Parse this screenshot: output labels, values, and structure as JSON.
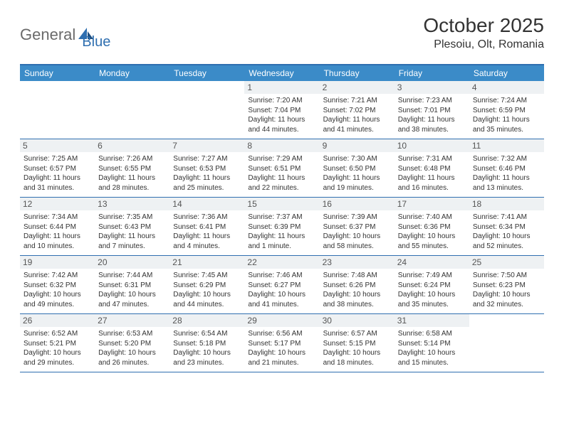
{
  "logo": {
    "part1": "General",
    "part2": "Blue"
  },
  "header": {
    "title": "October 2025",
    "location": "Plesoiu, Olt, Romania"
  },
  "weekday_bg": "#3b8bc8",
  "border_color": "#2f6fb0",
  "daynum_bg": "#eef1f3",
  "weekdays": [
    "Sunday",
    "Monday",
    "Tuesday",
    "Wednesday",
    "Thursday",
    "Friday",
    "Saturday"
  ],
  "weeks": [
    [
      null,
      null,
      null,
      {
        "n": "1",
        "sunrise": "7:20 AM",
        "sunset": "7:04 PM",
        "day_h": "11",
        "day_m": "44"
      },
      {
        "n": "2",
        "sunrise": "7:21 AM",
        "sunset": "7:02 PM",
        "day_h": "11",
        "day_m": "41"
      },
      {
        "n": "3",
        "sunrise": "7:23 AM",
        "sunset": "7:01 PM",
        "day_h": "11",
        "day_m": "38"
      },
      {
        "n": "4",
        "sunrise": "7:24 AM",
        "sunset": "6:59 PM",
        "day_h": "11",
        "day_m": "35"
      }
    ],
    [
      {
        "n": "5",
        "sunrise": "7:25 AM",
        "sunset": "6:57 PM",
        "day_h": "11",
        "day_m": "31"
      },
      {
        "n": "6",
        "sunrise": "7:26 AM",
        "sunset": "6:55 PM",
        "day_h": "11",
        "day_m": "28"
      },
      {
        "n": "7",
        "sunrise": "7:27 AM",
        "sunset": "6:53 PM",
        "day_h": "11",
        "day_m": "25"
      },
      {
        "n": "8",
        "sunrise": "7:29 AM",
        "sunset": "6:51 PM",
        "day_h": "11",
        "day_m": "22"
      },
      {
        "n": "9",
        "sunrise": "7:30 AM",
        "sunset": "6:50 PM",
        "day_h": "11",
        "day_m": "19"
      },
      {
        "n": "10",
        "sunrise": "7:31 AM",
        "sunset": "6:48 PM",
        "day_h": "11",
        "day_m": "16"
      },
      {
        "n": "11",
        "sunrise": "7:32 AM",
        "sunset": "6:46 PM",
        "day_h": "11",
        "day_m": "13"
      }
    ],
    [
      {
        "n": "12",
        "sunrise": "7:34 AM",
        "sunset": "6:44 PM",
        "day_h": "11",
        "day_m": "10"
      },
      {
        "n": "13",
        "sunrise": "7:35 AM",
        "sunset": "6:43 PM",
        "day_h": "11",
        "day_m": "7"
      },
      {
        "n": "14",
        "sunrise": "7:36 AM",
        "sunset": "6:41 PM",
        "day_h": "11",
        "day_m": "4"
      },
      {
        "n": "15",
        "sunrise": "7:37 AM",
        "sunset": "6:39 PM",
        "day_h": "11",
        "day_m": "1",
        "singular": true
      },
      {
        "n": "16",
        "sunrise": "7:39 AM",
        "sunset": "6:37 PM",
        "day_h": "10",
        "day_m": "58"
      },
      {
        "n": "17",
        "sunrise": "7:40 AM",
        "sunset": "6:36 PM",
        "day_h": "10",
        "day_m": "55"
      },
      {
        "n": "18",
        "sunrise": "7:41 AM",
        "sunset": "6:34 PM",
        "day_h": "10",
        "day_m": "52"
      }
    ],
    [
      {
        "n": "19",
        "sunrise": "7:42 AM",
        "sunset": "6:32 PM",
        "day_h": "10",
        "day_m": "49"
      },
      {
        "n": "20",
        "sunrise": "7:44 AM",
        "sunset": "6:31 PM",
        "day_h": "10",
        "day_m": "47"
      },
      {
        "n": "21",
        "sunrise": "7:45 AM",
        "sunset": "6:29 PM",
        "day_h": "10",
        "day_m": "44"
      },
      {
        "n": "22",
        "sunrise": "7:46 AM",
        "sunset": "6:27 PM",
        "day_h": "10",
        "day_m": "41"
      },
      {
        "n": "23",
        "sunrise": "7:48 AM",
        "sunset": "6:26 PM",
        "day_h": "10",
        "day_m": "38"
      },
      {
        "n": "24",
        "sunrise": "7:49 AM",
        "sunset": "6:24 PM",
        "day_h": "10",
        "day_m": "35"
      },
      {
        "n": "25",
        "sunrise": "7:50 AM",
        "sunset": "6:23 PM",
        "day_h": "10",
        "day_m": "32"
      }
    ],
    [
      {
        "n": "26",
        "sunrise": "6:52 AM",
        "sunset": "5:21 PM",
        "day_h": "10",
        "day_m": "29"
      },
      {
        "n": "27",
        "sunrise": "6:53 AM",
        "sunset": "5:20 PM",
        "day_h": "10",
        "day_m": "26"
      },
      {
        "n": "28",
        "sunrise": "6:54 AM",
        "sunset": "5:18 PM",
        "day_h": "10",
        "day_m": "23"
      },
      {
        "n": "29",
        "sunrise": "6:56 AM",
        "sunset": "5:17 PM",
        "day_h": "10",
        "day_m": "21"
      },
      {
        "n": "30",
        "sunrise": "6:57 AM",
        "sunset": "5:15 PM",
        "day_h": "10",
        "day_m": "18"
      },
      {
        "n": "31",
        "sunrise": "6:58 AM",
        "sunset": "5:14 PM",
        "day_h": "10",
        "day_m": "15"
      },
      null
    ]
  ]
}
